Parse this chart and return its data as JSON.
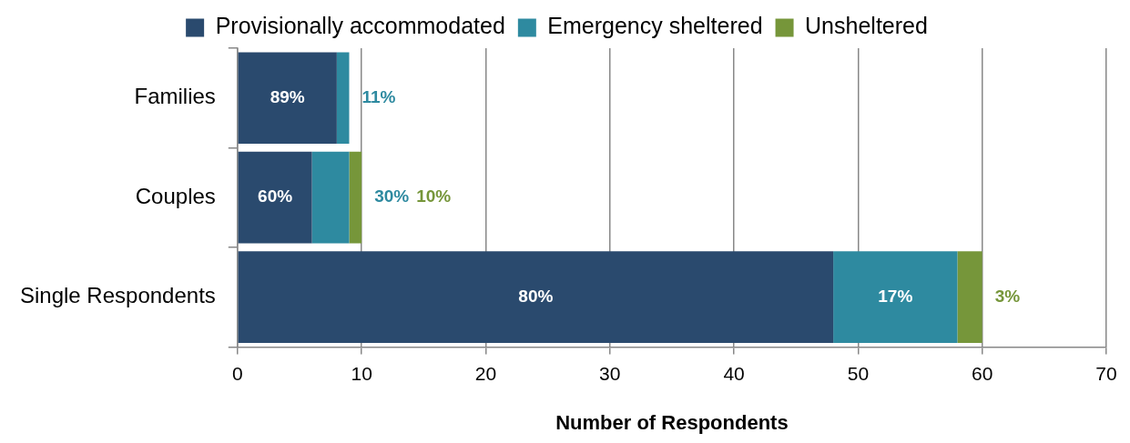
{
  "chart_data": {
    "type": "bar",
    "orientation": "horizontal",
    "stacked": true,
    "categories": [
      "Families",
      "Couples",
      "Single Respondents"
    ],
    "series": [
      {
        "name": "Provisionally accommodated",
        "color": "#2a4a6e",
        "values": [
          8,
          6,
          48
        ]
      },
      {
        "name": "Emergency sheltered",
        "color": "#2e8aa0",
        "values": [
          1,
          3,
          10
        ]
      },
      {
        "name": "Unsheltered",
        "color": "#76963a",
        "values": [
          0,
          1,
          2
        ]
      }
    ],
    "annotations": [
      "89%",
      "11%",
      "60%",
      "30%",
      "10%",
      "80%",
      "17%",
      "3%"
    ],
    "xlabel": "Number of Respondents",
    "xlim": [
      0,
      70
    ],
    "xticks": [
      0,
      10,
      20,
      30,
      40,
      50,
      60,
      70
    ],
    "grid": "x",
    "legend": "top"
  }
}
